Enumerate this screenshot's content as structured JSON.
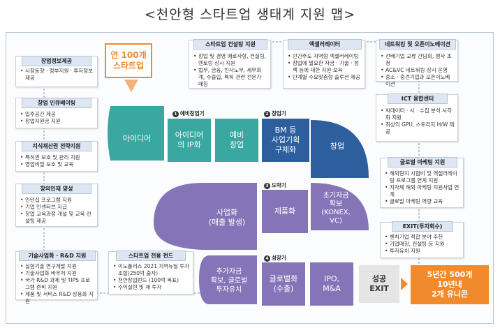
{
  "title": "<천안형 스타트업 생태계 지원 맵>",
  "highlight": {
    "text": "연 100개\n스타트업"
  },
  "left_panels": [
    {
      "header": "창업정보제공",
      "items": [
        "시장동향 · 정부지원 · 투자정보 제공"
      ]
    },
    {
      "header": "창업 인큐베이팅",
      "items": [
        "입주공간 제공",
        "창업지원금 지원"
      ]
    },
    {
      "header": "지식재산권 전략지원",
      "items": [
        "특허권 보호 및 관리 지원",
        "영업비밀 보호 및 교육"
      ]
    },
    {
      "header": "창의인재 양성",
      "items": [
        "인턴십 프로그램 지원",
        "기업 인센티브 지급",
        "창업 교육과정 개설 및 교육 컨설팅 제공"
      ]
    }
  ],
  "top_panels": [
    {
      "header": "스타트업 컨설팅 지원",
      "items": [
        "창업 및 경영 애로사항, 컨설팅, 멘토링 상시 지원",
        "법무, 금융, 인사노무, 세무회계, 수출입, 특허 관련 전문가 매칭"
      ]
    },
    {
      "header": "엑셀러레이터",
      "items": [
        "민간주도 지역형 엑셀러레이팅",
        "창업에 필요한 자금 · 기술 · 정책 등에 대한 지원·보육",
        "단계별 수요맞춤형 솔루션 제공"
      ]
    },
    {
      "header": "네트워킹 및 오픈이노베이션",
      "items": [
        "선배기업 교류 간담회, 행사 초청",
        "AC&VC 네트워킹 상시 운영",
        "중소 · 중견기업과 오픈이노베이션"
      ]
    }
  ],
  "ict_panel": {
    "header": "ICT 융합센터",
    "items": [
      "빅데이터 · 시 · 수집 분석 시각화 지원",
      "최상의 GPU, 스토리지 H/W 제공"
    ]
  },
  "right_panels": [
    {
      "header": "글로벌 마케팅 지원",
      "items": [
        "해외현지 시험비 및 엑셀러레이팅 프로그램 연계 지원",
        "지자체 해외 마케팅 지원사업 연계",
        "글로벌 마케팅 역량 교육"
      ]
    },
    {
      "header": "EXIT(투자회수)",
      "items": [
        "벤처기업 적합 분야 추천",
        "기업매칭, 컨설팅 등 지원",
        "투자유치 지원"
      ]
    }
  ],
  "bottom_panels": [
    {
      "header": "기술사업화 · R&D 지원",
      "items": [
        "실험기술 연구개발 지원",
        "기술사업화 바우처 지원",
        "국가 R&D 과제 및 TIPS 프로그램 준비 지원",
        "제품 및 서비스 R&D 상용화 지원"
      ]
    },
    {
      "header": "스타트업 전용 펀드",
      "items": [
        "이노폴리스 2021 지역뉴딜 투자조합(250억 출자)",
        "천안창업펀드 (100억 목표)",
        "수익실현 및 재 투자"
      ]
    }
  ],
  "stages": [
    {
      "num": "1",
      "label": "예비창업기"
    },
    {
      "num": "2",
      "label": "창업기"
    },
    {
      "num": "3",
      "label": "도약기"
    },
    {
      "num": "4",
      "label": "성장기"
    }
  ],
  "flow": {
    "idea": "아이디어",
    "idea_ip": "아이디어\n의 IP화",
    "pre_startup": "예비\n창업",
    "bm": "BM 등\n사업기획\n구체화",
    "startup": "창업",
    "commercialization": "사업화\n(매출 발생)",
    "productization": "제품화",
    "initial_funding": "초기자금\n확보\n(KONEX,\nVC)",
    "additional_funding": "추가자금\n확보, 글로벌\n투자유치",
    "global": "글로벌화\n(수출)",
    "ipo": "IPO,\nM&A",
    "exit": "성공\nEXIT",
    "result": "5년간 500개\n10년내\n2개 유니콘"
  },
  "colors": {
    "teal": "#3aa7a0",
    "blue": "#2d5f9e",
    "purple": "#8575b8",
    "orange": "#f08a2c",
    "gray": "#e5e5e5"
  }
}
